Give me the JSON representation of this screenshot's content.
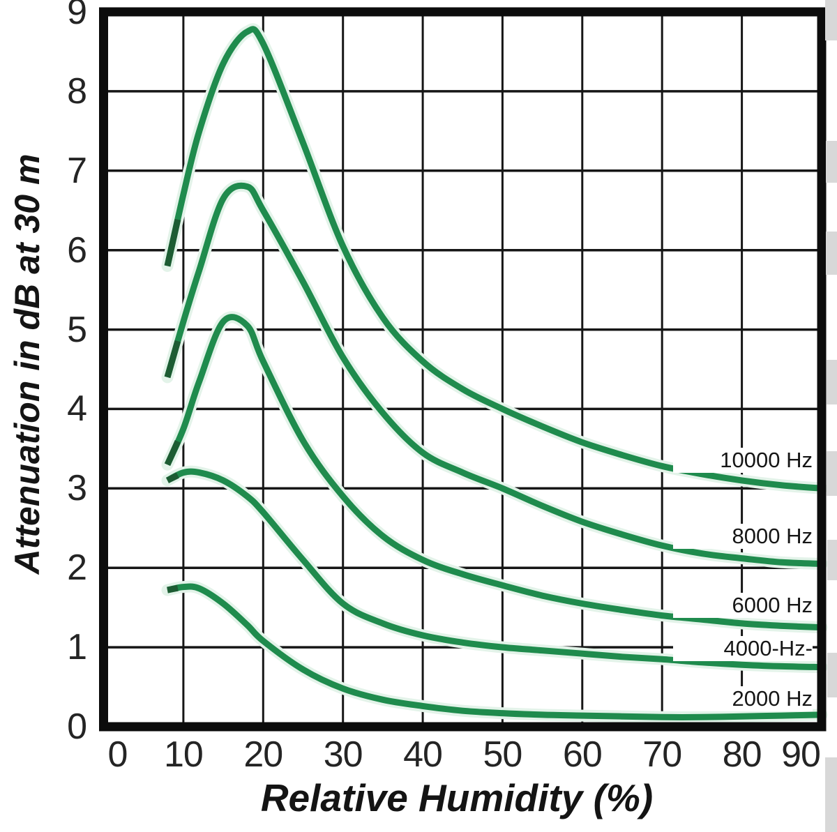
{
  "chart_data": {
    "type": "line",
    "title": "",
    "xlabel": "Relative Humidity (%)",
    "ylabel": "Attenuation in dB at 30 m",
    "xlim": [
      0,
      90
    ],
    "ylim": [
      0,
      9
    ],
    "x_ticks": [
      0,
      10,
      20,
      30,
      40,
      50,
      60,
      70,
      80,
      90
    ],
    "y_ticks": [
      0,
      1,
      2,
      3,
      4,
      5,
      6,
      7,
      8,
      9
    ],
    "grid": true,
    "legend_position": "inline-right",
    "x": [
      8,
      10,
      12,
      15,
      18,
      20,
      25,
      30,
      35,
      40,
      45,
      50,
      55,
      60,
      65,
      70,
      75,
      80,
      85,
      90
    ],
    "series": [
      {
        "name": "10000 Hz",
        "label": "10000 Hz",
        "label_v": 3.35,
        "values": [
          5.8,
          6.7,
          7.5,
          8.35,
          8.75,
          8.6,
          7.35,
          6.05,
          5.15,
          4.6,
          4.25,
          4.0,
          3.78,
          3.58,
          3.42,
          3.28,
          3.18,
          3.1,
          3.04,
          3.0
        ]
      },
      {
        "name": "8000 Hz",
        "label": "8000 Hz",
        "label_v": 2.4,
        "values": [
          4.4,
          5.1,
          5.75,
          6.65,
          6.8,
          6.5,
          5.6,
          4.65,
          3.95,
          3.45,
          3.2,
          3.0,
          2.78,
          2.58,
          2.42,
          2.28,
          2.18,
          2.12,
          2.07,
          2.05
        ]
      },
      {
        "name": "6000 Hz",
        "label": "6000 Hz",
        "label_v": 1.53,
        "values": [
          3.3,
          3.75,
          4.35,
          5.1,
          5.05,
          4.6,
          3.6,
          2.9,
          2.4,
          2.1,
          1.92,
          1.78,
          1.65,
          1.55,
          1.47,
          1.4,
          1.35,
          1.3,
          1.27,
          1.25
        ]
      },
      {
        "name": "4000 Hz",
        "label": "4000-Hz-",
        "label_v": 0.98,
        "values": [
          3.1,
          3.2,
          3.2,
          3.1,
          2.9,
          2.7,
          2.1,
          1.55,
          1.3,
          1.15,
          1.06,
          1.0,
          0.96,
          0.92,
          0.88,
          0.85,
          0.81,
          0.78,
          0.76,
          0.75
        ]
      },
      {
        "name": "2000 Hz",
        "label": "2000 Hz",
        "label_v": 0.35,
        "values": [
          1.72,
          1.76,
          1.74,
          1.55,
          1.28,
          1.08,
          0.72,
          0.48,
          0.34,
          0.26,
          0.2,
          0.17,
          0.15,
          0.14,
          0.13,
          0.12,
          0.12,
          0.13,
          0.14,
          0.15
        ]
      }
    ],
    "colors": {
      "line": "#1f8b4d",
      "line_dark": "#1d5c33",
      "halo": "#e3f3e9",
      "grid": "#161616",
      "border": "#0c0c0c",
      "text": "#1b1b1b"
    }
  }
}
